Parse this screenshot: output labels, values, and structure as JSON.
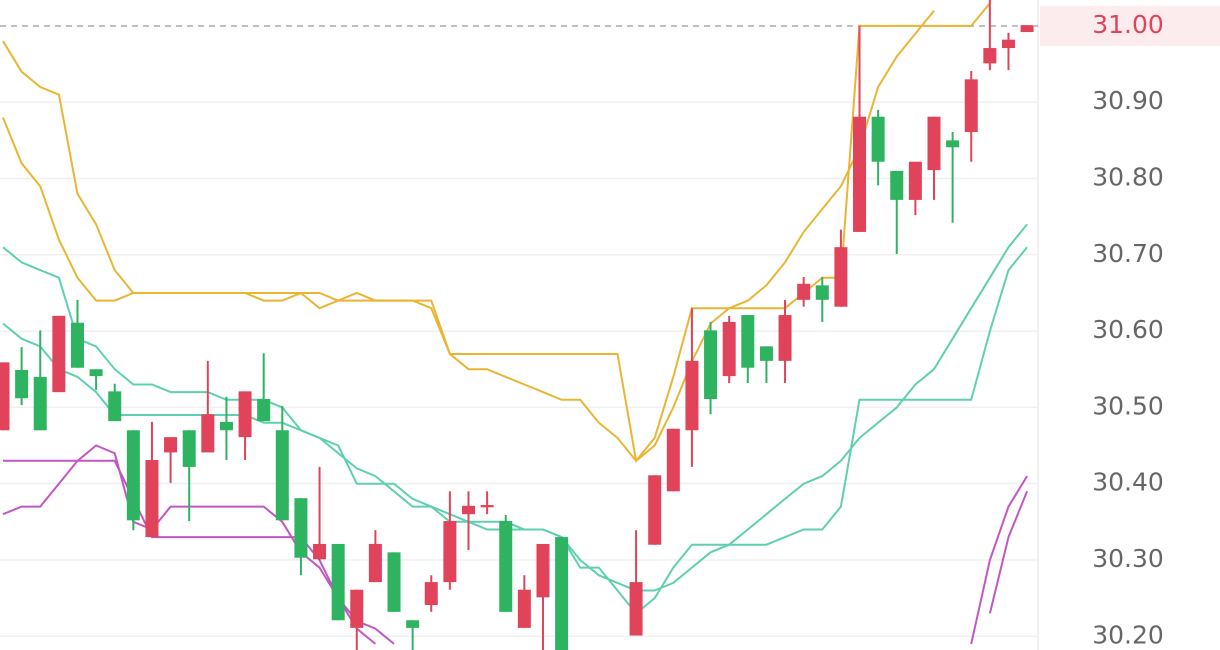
{
  "chart_data": {
    "type": "candlestick",
    "categories": [
      null,
      null,
      null,
      null,
      null,
      null,
      null,
      null,
      null,
      null,
      null,
      null,
      null,
      null,
      null,
      null,
      null,
      null,
      null,
      null,
      null,
      null,
      null,
      null,
      null,
      null,
      null,
      null,
      null,
      null,
      null,
      null,
      null,
      null,
      null,
      null,
      null,
      null,
      null,
      null,
      null,
      null,
      null,
      null,
      null,
      null,
      null,
      null,
      null,
      null,
      null,
      null,
      null,
      null,
      null,
      null
    ],
    "open": [
      30.47,
      30.549,
      30.54,
      30.52,
      30.611,
      30.55,
      30.521,
      30.47,
      30.33,
      30.441,
      30.47,
      30.441,
      30.481,
      30.461,
      30.511,
      30.47,
      30.381,
      30.301,
      30.321,
      30.211,
      30.271,
      30.31,
      30.221,
      30.241,
      30.271,
      30.36,
      30.369,
      30.351,
      30.211,
      30.251,
      30.33,
      null,
      null,
      null,
      30.201,
      30.32,
      30.39,
      30.47,
      30.601,
      30.541,
      30.621,
      30.58,
      30.561,
      30.641,
      30.66,
      30.632,
      30.73,
      30.881,
      30.81,
      30.772,
      30.811,
      30.85,
      30.861,
      30.951,
      30.971,
      30.992
    ],
    "high": [
      30.559,
      30.579,
      30.601,
      30.62,
      30.641,
      30.55,
      30.531,
      30.47,
      30.481,
      30.461,
      30.47,
      30.561,
      30.514,
      30.521,
      30.571,
      30.502,
      30.381,
      30.422,
      30.321,
      30.261,
      30.339,
      30.31,
      30.221,
      30.28,
      30.39,
      30.39,
      30.39,
      30.359,
      30.28,
      30.321,
      30.33,
      null,
      null,
      null,
      30.339,
      30.411,
      30.472,
      30.63,
      30.612,
      30.62,
      30.621,
      30.58,
      30.641,
      30.671,
      30.671,
      30.733,
      31.0,
      30.89,
      30.81,
      30.822,
      30.881,
      30.861,
      30.941,
      31.034,
      30.991,
      31.001
    ],
    "low": [
      30.47,
      30.503,
      30.47,
      30.52,
      30.552,
      30.523,
      30.482,
      30.339,
      30.33,
      30.401,
      30.351,
      30.441,
      30.431,
      30.431,
      30.482,
      30.352,
      30.28,
      30.3,
      30.221,
      30.182,
      30.271,
      30.232,
      30.182,
      30.232,
      30.261,
      30.313,
      30.36,
      30.232,
      30.211,
      30.182,
      30.182,
      null,
      null,
      null,
      30.201,
      30.32,
      30.39,
      30.422,
      30.491,
      30.532,
      30.532,
      30.532,
      30.532,
      30.632,
      30.612,
      30.632,
      30.73,
      30.791,
      30.701,
      30.752,
      30.772,
      30.742,
      30.822,
      30.942,
      30.942,
      30.992
    ],
    "close": [
      30.559,
      30.512,
      30.47,
      30.62,
      30.552,
      30.541,
      30.482,
      30.352,
      30.431,
      30.461,
      30.422,
      30.491,
      30.47,
      30.521,
      30.482,
      30.352,
      30.303,
      30.321,
      30.221,
      30.261,
      30.321,
      30.232,
      30.211,
      30.271,
      30.351,
      30.371,
      30.372,
      30.232,
      30.261,
      30.321,
      30.182,
      null,
      null,
      null,
      30.271,
      30.411,
      30.472,
      30.561,
      30.511,
      30.612,
      30.552,
      30.561,
      30.621,
      30.662,
      30.641,
      30.71,
      30.881,
      30.822,
      30.772,
      30.822,
      30.881,
      30.841,
      30.93,
      30.971,
      30.982,
      31.001
    ],
    "up_color": "#e0435a",
    "down_color": "#2eb360",
    "series": [
      {
        "color": "#e9b532",
        "values": [
          30.98,
          30.94,
          30.92,
          30.91,
          30.78,
          30.74,
          30.68,
          30.65,
          30.65,
          30.65,
          30.65,
          30.65,
          30.65,
          30.65,
          30.65,
          30.65,
          30.65,
          30.65,
          30.64,
          30.64,
          30.64,
          30.64,
          30.64,
          30.63,
          30.57,
          30.57,
          30.57,
          30.57,
          30.57,
          30.57,
          30.57,
          30.57,
          30.57,
          30.57,
          30.43,
          30.46,
          30.54,
          30.63,
          30.63,
          30.63,
          30.63,
          30.63,
          30.63,
          30.65,
          30.67,
          30.67,
          31.0,
          31.0,
          31.0,
          31.0,
          31.0,
          31.0,
          31.0,
          31.03,
          null,
          null
        ]
      },
      {
        "color": "#e9b532",
        "values": [
          30.88,
          30.82,
          30.79,
          30.72,
          30.67,
          30.64,
          30.64,
          30.65,
          30.65,
          30.65,
          30.65,
          30.65,
          30.65,
          30.65,
          30.64,
          30.64,
          30.65,
          30.63,
          30.64,
          30.65,
          30.64,
          30.64,
          30.64,
          30.64,
          30.57,
          30.55,
          30.55,
          30.54,
          30.53,
          30.52,
          30.51,
          30.51,
          30.48,
          30.46,
          30.43,
          30.45,
          30.5,
          30.56,
          30.61,
          30.63,
          30.64,
          30.66,
          30.69,
          30.73,
          30.76,
          30.79,
          30.84,
          30.92,
          30.96,
          30.99,
          31.02,
          null,
          null,
          null,
          null,
          null
        ]
      },
      {
        "color": "#5fcfb2",
        "values": [
          30.71,
          30.69,
          30.68,
          30.67,
          30.59,
          30.58,
          30.55,
          30.53,
          30.53,
          30.52,
          30.52,
          30.52,
          30.51,
          30.51,
          30.51,
          30.5,
          30.47,
          30.46,
          30.45,
          30.4,
          30.4,
          30.4,
          30.38,
          30.37,
          30.36,
          30.35,
          30.34,
          30.34,
          30.34,
          30.34,
          30.33,
          30.29,
          30.29,
          30.26,
          30.23,
          30.25,
          30.29,
          30.32,
          30.32,
          30.32,
          30.32,
          30.32,
          30.33,
          30.34,
          30.34,
          30.37,
          30.51,
          30.51,
          30.51,
          30.51,
          30.51,
          30.51,
          30.51,
          30.6,
          30.68,
          30.71
        ]
      },
      {
        "color": "#5fcfb2",
        "values": [
          30.61,
          30.59,
          30.58,
          30.55,
          30.54,
          30.52,
          30.49,
          30.49,
          30.49,
          30.49,
          30.49,
          30.49,
          30.49,
          30.49,
          30.48,
          30.48,
          30.47,
          30.46,
          30.44,
          30.42,
          30.41,
          30.39,
          30.37,
          30.37,
          30.35,
          30.35,
          30.35,
          30.35,
          30.34,
          30.34,
          30.33,
          30.3,
          30.28,
          30.27,
          30.26,
          30.26,
          30.27,
          30.29,
          30.31,
          30.32,
          30.34,
          30.36,
          30.38,
          30.4,
          30.41,
          30.43,
          30.46,
          30.48,
          30.5,
          30.53,
          30.55,
          30.59,
          30.63,
          30.67,
          30.71,
          30.74
        ]
      },
      {
        "color": "#c456c4",
        "values": [
          30.43,
          30.43,
          30.43,
          30.43,
          30.43,
          30.43,
          30.43,
          30.38,
          30.33,
          30.33,
          30.33,
          30.33,
          30.33,
          30.33,
          30.33,
          30.33,
          30.33,
          30.3,
          30.25,
          30.21,
          30.19,
          null,
          null,
          null,
          null,
          null,
          null,
          null,
          null,
          null,
          null,
          null,
          null,
          null,
          null,
          null,
          null,
          null,
          null,
          null,
          null,
          null,
          null,
          null,
          null,
          null,
          null,
          null,
          null,
          null,
          null,
          null,
          30.19,
          30.3,
          30.37,
          30.41
        ]
      },
      {
        "color": "#c456c4",
        "values": [
          30.36,
          30.37,
          30.37,
          30.4,
          30.43,
          30.45,
          30.44,
          30.35,
          30.34,
          30.37,
          30.37,
          30.37,
          30.37,
          30.37,
          30.37,
          30.35,
          30.31,
          30.29,
          30.25,
          30.22,
          30.21,
          30.19,
          null,
          null,
          null,
          null,
          null,
          null,
          null,
          null,
          null,
          null,
          null,
          null,
          null,
          null,
          null,
          null,
          null,
          null,
          null,
          null,
          null,
          null,
          null,
          null,
          null,
          null,
          null,
          null,
          null,
          null,
          null,
          30.23,
          30.33,
          30.39
        ]
      }
    ],
    "ylim": [
      30.182,
      31.034
    ],
    "yticks": [
      {
        "value": 30.2,
        "label": "30.20"
      },
      {
        "value": 30.3,
        "label": "30.30"
      },
      {
        "value": 30.4,
        "label": "30.40"
      },
      {
        "value": 30.5,
        "label": "30.50"
      },
      {
        "value": 30.6,
        "label": "30.60"
      },
      {
        "value": 30.7,
        "label": "30.70"
      },
      {
        "value": 30.8,
        "label": "30.80"
      },
      {
        "value": 30.9,
        "label": "30.90"
      }
    ],
    "last_price": {
      "value": 31,
      "label": "31.00"
    },
    "last_price_color": "#e0435a",
    "grid": true
  }
}
